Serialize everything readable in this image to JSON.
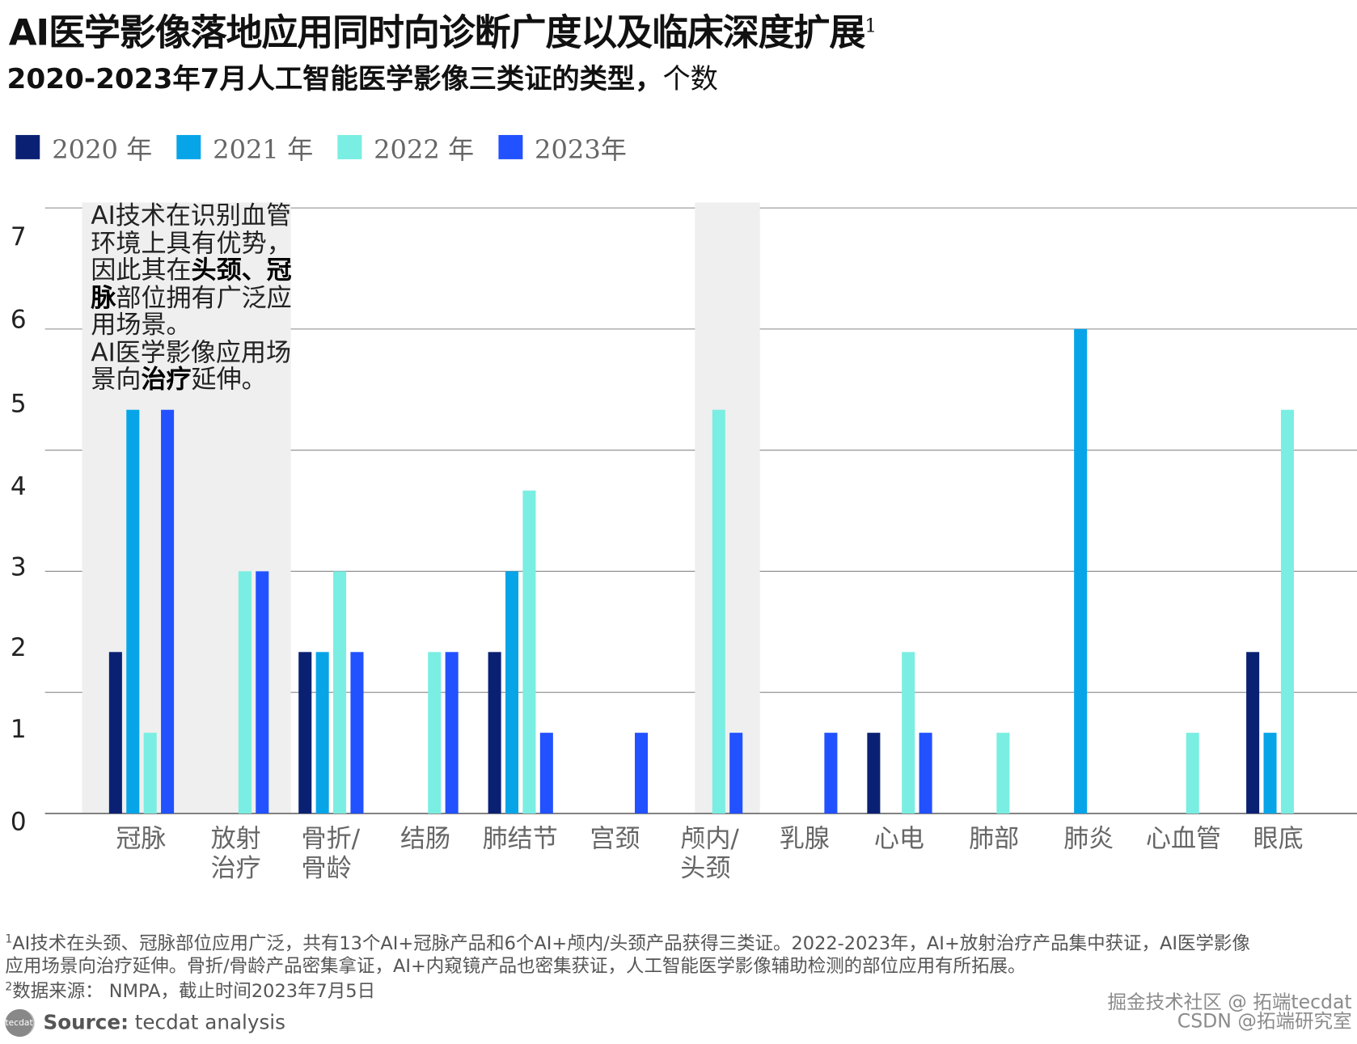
{
  "header": {
    "title": "AI医学影像落地应用同时向诊断广度以及临床深度扩展",
    "title_sup": "1",
    "subtitle_bold": "2020-2023年7月人工智能医学影像三类证的类型，",
    "subtitle_rest": "个数"
  },
  "annotation": {
    "segments": [
      {
        "text": "AI技术在识别血管环境上具有优势，因此其在",
        "bold": false
      },
      {
        "text": "头颈、冠脉",
        "bold": true
      },
      {
        "text": "部位拥有广泛应用场景。",
        "bold": false
      },
      {
        "text": "AI医学影像应用场景向",
        "bold": false,
        "newline": true
      },
      {
        "text": "治疗",
        "bold": true
      },
      {
        "text": "延伸。",
        "bold": false
      }
    ]
  },
  "chart_data": {
    "type": "bar",
    "title": "2020-2023年7月人工智能医学影像三类证的类型，个数",
    "xlabel": "",
    "ylabel": "个数",
    "ylim": [
      0,
      7.5
    ],
    "yticks": [
      0,
      1,
      2,
      3,
      4,
      5,
      6,
      7
    ],
    "gridlines": [
      1.5,
      3,
      4.5,
      6,
      7.5
    ],
    "legend_position": "top-left",
    "categories": [
      "冠脉",
      "放射\n治疗",
      "骨折/\n骨龄",
      "结肠",
      "肺结节",
      "宫颈",
      "颅内/\n头颈",
      "乳腺",
      "心电",
      "肺部",
      "肺炎",
      "心血管",
      "眼底"
    ],
    "highlighted_categories": [
      0,
      6
    ],
    "series": [
      {
        "name": "2020 年",
        "color": "#0a2173",
        "values": [
          2,
          0,
          2,
          0,
          2,
          0,
          0,
          0,
          1,
          0,
          0,
          0,
          2
        ]
      },
      {
        "name": "2021 年",
        "color": "#07a5e8",
        "values": [
          5,
          0,
          2,
          0,
          3,
          0,
          0,
          0,
          0,
          0,
          6,
          0,
          1
        ]
      },
      {
        "name": "2022 年",
        "color": "#7aeee2",
        "values": [
          1,
          3,
          3,
          2,
          4,
          0,
          5,
          0,
          2,
          1,
          0,
          1,
          5
        ]
      },
      {
        "name": "2023年",
        "color": "#2251ff",
        "values": [
          5,
          3,
          2,
          2,
          1,
          1,
          1,
          1,
          1,
          0,
          0,
          0,
          0
        ]
      }
    ]
  },
  "footnotes": {
    "note1_sup": "1",
    "note1_line1": "AI技术在头颈、冠脉部位应用广泛，共有13个AI+冠脉产品和6个AI+颅内/头颈产品获得三类证。2022-2023年，AI+放射治疗产品集中获证，AI医学影像",
    "note1_line2": "应用场景向治疗延伸。骨折/骨龄产品密集拿证，AI+内窥镜产品也密集获证，人工智能医学影像辅助检测的部位应用有所拓展。",
    "note2_sup": "2",
    "note2": "数据来源： NMPA，截止时间2023年7月5日"
  },
  "source": {
    "logo": "tecdat",
    "label": "Source:",
    "text": " tecdat analysis"
  },
  "watermark": {
    "line1": "掘金技术社区 @ 拓端tecdat",
    "line2": "CSDN @拓端研究室"
  }
}
